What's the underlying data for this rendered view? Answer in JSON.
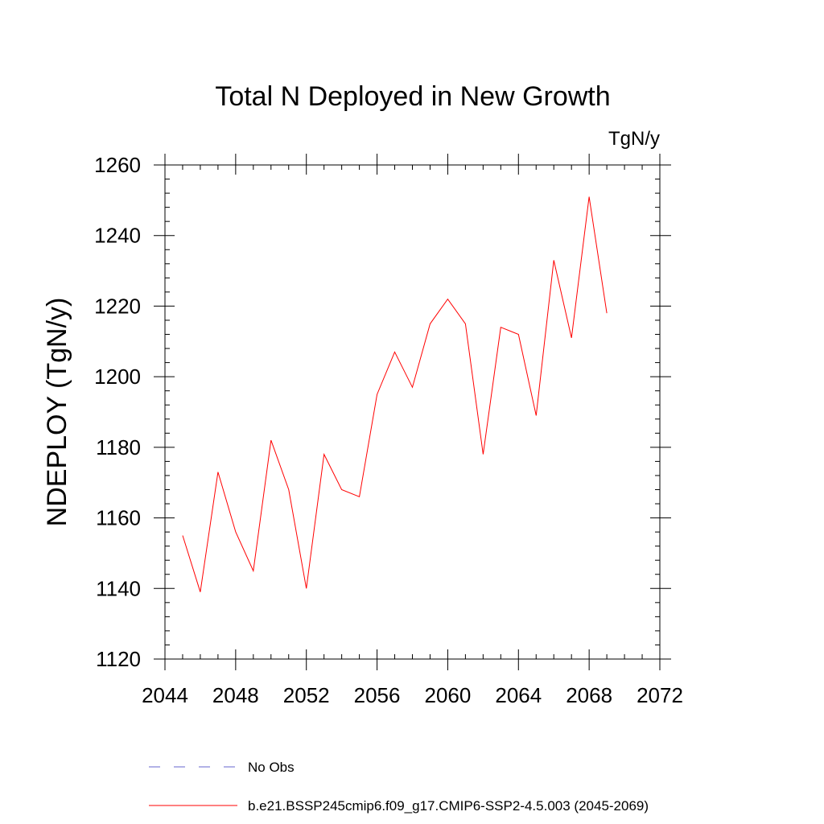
{
  "chart_data": {
    "type": "line",
    "title": "Total N Deployed in New Growth",
    "units": "TgN/y",
    "ylabel": "NDEPLOY  (TgN/y)",
    "xlabel": "",
    "xlim": [
      2044,
      2072
    ],
    "ylim": [
      1120,
      1260
    ],
    "x_major_ticks": [
      2044,
      2048,
      2052,
      2056,
      2060,
      2064,
      2068,
      2072
    ],
    "x_minor_step": 1,
    "y_major_ticks": [
      1120,
      1140,
      1160,
      1180,
      1200,
      1220,
      1240,
      1260
    ],
    "y_minor_step": 4,
    "grid": false,
    "series": [
      {
        "name": "b.e21.BSSP245cmip6.f09_g17.CMIP6-SSP2-4.5.003 (2045-2069)",
        "color": "#ff0000",
        "style": "solid",
        "x": [
          2045,
          2046,
          2047,
          2048,
          2049,
          2050,
          2051,
          2052,
          2053,
          2054,
          2055,
          2056,
          2057,
          2058,
          2059,
          2060,
          2061,
          2062,
          2063,
          2064,
          2065,
          2066,
          2067,
          2068,
          2069
        ],
        "y": [
          1155,
          1139,
          1173,
          1156,
          1145,
          1182,
          1168,
          1140,
          1178,
          1168,
          1166,
          1195,
          1207,
          1197,
          1215,
          1222,
          1215,
          1178,
          1214,
          1212,
          1189,
          1233,
          1211,
          1251,
          1218
        ]
      }
    ],
    "legend": {
      "placement": "bottom",
      "entries": [
        {
          "label": "No Obs",
          "color": "#6666cc",
          "style": "dashed"
        },
        {
          "label": "b.e21.BSSP245cmip6.f09_g17.CMIP6-SSP2-4.5.003 (2045-2069)",
          "color": "#ff0000",
          "style": "solid"
        }
      ]
    }
  }
}
